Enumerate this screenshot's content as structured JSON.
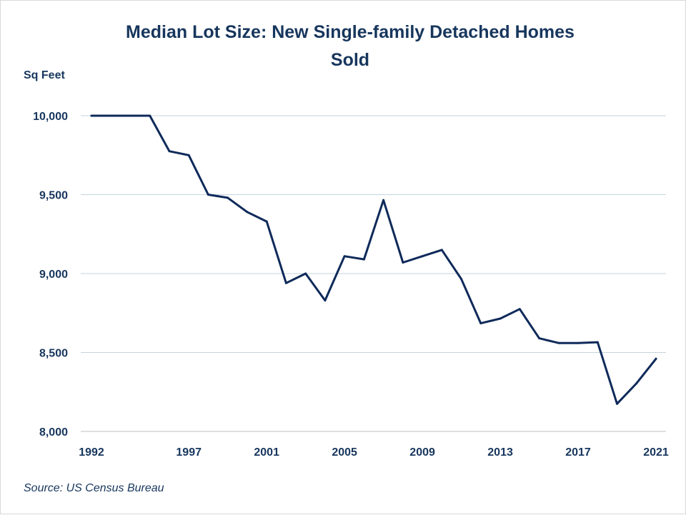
{
  "chart_data": {
    "type": "line",
    "title_lines": [
      "Median Lot Size: New Single-family Detached Homes",
      "Sold"
    ],
    "ylabel": "Sq Feet",
    "source": "Source: US Census Bureau",
    "ylim": [
      8000,
      10000
    ],
    "y_ticks": [
      10000,
      9500,
      9000,
      8500,
      8000
    ],
    "y_tick_labels": [
      "10,000",
      "9,500",
      "9,000",
      "8,500",
      "8,000"
    ],
    "xlim": [
      1992,
      2021
    ],
    "x_tick_labels": [
      "1992",
      "1997",
      "2001",
      "2005",
      "2009",
      "2013",
      "2017",
      "2021"
    ],
    "grid": true,
    "colors": {
      "line": "#0f2a5a",
      "text": "#17365d",
      "grid": "#c5d3de"
    },
    "series": [
      {
        "x": [
          1992,
          1993,
          1994,
          1995,
          1996,
          1997,
          1998,
          1999,
          2000,
          2001,
          2002,
          2003,
          2004,
          2005,
          2006,
          2007,
          2008,
          2009,
          2010,
          2011,
          2012,
          2013,
          2014,
          2015,
          2016,
          2017,
          2018,
          2019,
          2020,
          2021
        ],
        "values": [
          10000,
          10000,
          10000,
          10000,
          9775,
          9750,
          9500,
          9480,
          9390,
          9330,
          8940,
          9000,
          8830,
          9110,
          9090,
          9465,
          9070,
          9110,
          9150,
          8965,
          8685,
          8715,
          8775,
          8590,
          8560,
          8560,
          8565,
          8175,
          8305,
          8460
        ]
      }
    ]
  }
}
